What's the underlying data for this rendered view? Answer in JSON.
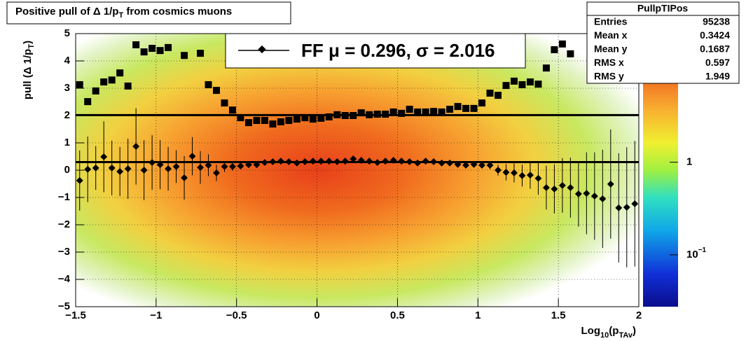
{
  "chart_data": {
    "type": "scatter",
    "title": [
      "Positive pull of Δ 1/p",
      "T",
      " from cosmics muons"
    ],
    "xlabel": [
      "Log",
      "10",
      "(p",
      "TAv",
      ")"
    ],
    "ylabel": [
      "pull (Δ 1/p",
      "T",
      ")"
    ],
    "x": [
      -1.475,
      -1.425,
      -1.375,
      -1.325,
      -1.275,
      -1.225,
      -1.175,
      -1.125,
      -1.075,
      -1.025,
      -0.975,
      -0.925,
      -0.875,
      -0.825,
      -0.775,
      -0.725,
      -0.675,
      -0.625,
      -0.575,
      -0.525,
      -0.475,
      -0.425,
      -0.375,
      -0.325,
      -0.275,
      -0.225,
      -0.175,
      -0.125,
      -0.075,
      -0.025,
      0.025,
      0.075,
      0.125,
      0.175,
      0.225,
      0.275,
      0.325,
      0.375,
      0.425,
      0.475,
      0.525,
      0.575,
      0.625,
      0.675,
      0.725,
      0.775,
      0.825,
      0.875,
      0.925,
      0.975,
      1.025,
      1.075,
      1.125,
      1.175,
      1.225,
      1.275,
      1.325,
      1.375,
      1.425,
      1.475,
      1.525,
      1.575,
      1.625,
      1.675,
      1.725,
      1.775,
      1.825,
      1.875,
      1.925,
      1.975
    ],
    "xlim": [
      -1.5,
      2
    ],
    "ylim": [
      -5,
      5
    ],
    "xticks": [
      {
        "value": -1.5,
        "label": "−1.5"
      },
      {
        "value": -1,
        "label": "−1"
      },
      {
        "value": -0.5,
        "label": "−0.5"
      },
      0,
      0.5,
      1,
      1.5,
      2
    ],
    "yticks": [
      {
        "value": -5,
        "label": "−5"
      },
      {
        "value": -4,
        "label": "−4"
      },
      {
        "value": -3,
        "label": "−3"
      },
      {
        "value": -2,
        "label": "−2"
      },
      {
        "value": -1,
        "label": "−1"
      },
      0,
      1,
      2,
      3,
      4,
      5
    ],
    "grid": true,
    "series": [
      {
        "color": "#000000",
        "marker": "square",
        "values": [
          3.13,
          2.51,
          2.9,
          3.23,
          3.3,
          3.56,
          3.08,
          4.59,
          4.33,
          4.46,
          4.38,
          4.49,
          null,
          4.2,
          null,
          4.28,
          3.13,
          2.92,
          2.46,
          2.2,
          1.92,
          1.74,
          1.82,
          1.82,
          1.69,
          1.77,
          1.82,
          1.87,
          1.92,
          1.87,
          1.9,
          1.95,
          2.03,
          2.0,
          2.0,
          2.1,
          2.03,
          2.05,
          2.05,
          2.13,
          2.08,
          2.23,
          2.13,
          2.13,
          2.15,
          2.13,
          2.23,
          2.33,
          2.26,
          2.26,
          2.46,
          2.82,
          2.74,
          3.1,
          3.26,
          3.13,
          3.23,
          3.15,
          3.74,
          4.41,
          4.62,
          4.26,
          null,
          null,
          null,
          null,
          null,
          null,
          null,
          null
        ]
      },
      {
        "name": "FF μ =  0.296, σ =   2.016",
        "color": "#000000",
        "marker": "diamond",
        "values": [
          -0.38,
          0.03,
          0.08,
          0.49,
          0.08,
          -0.05,
          0.05,
          0.87,
          0.0,
          0.28,
          0.2,
          0.05,
          0.13,
          -0.28,
          0.51,
          0.1,
          0.18,
          -0.1,
          0.13,
          0.13,
          0.15,
          0.2,
          0.2,
          0.28,
          0.31,
          0.33,
          0.31,
          0.26,
          0.31,
          0.33,
          0.33,
          0.33,
          0.31,
          0.33,
          0.41,
          0.36,
          0.33,
          0.28,
          0.33,
          0.36,
          0.33,
          0.31,
          0.26,
          0.33,
          0.31,
          0.26,
          0.26,
          0.21,
          0.18,
          0.21,
          0.18,
          0.18,
          0.0,
          -0.08,
          -0.1,
          -0.2,
          -0.18,
          -0.3,
          -0.64,
          -0.69,
          -0.56,
          -0.64,
          -0.87,
          -0.85,
          -0.95,
          -1.05,
          -0.51,
          -1.38,
          -1.36,
          -1.23
        ],
        "errors": [
          1.1,
          1.2,
          0.8,
          1.3,
          1.0,
          0.9,
          1.1,
          1.4,
          1.1,
          1.0,
          0.9,
          0.8,
          0.6,
          0.8,
          0.7,
          0.6,
          0.4,
          0.3,
          0.2,
          0.15,
          0.08,
          0.08,
          0.08,
          0.08,
          0.08,
          0.08,
          0.08,
          0.08,
          0.08,
          0.08,
          0.08,
          0.08,
          0.08,
          0.08,
          0.08,
          0.08,
          0.08,
          0.08,
          0.08,
          0.08,
          0.08,
          0.08,
          0.08,
          0.08,
          0.08,
          0.08,
          0.08,
          0.08,
          0.08,
          0.08,
          0.08,
          0.15,
          0.2,
          0.3,
          0.35,
          0.4,
          0.5,
          0.6,
          0.8,
          0.9,
          1.0,
          1.1,
          1.2,
          1.5,
          1.6,
          1.8,
          2.0,
          2.0,
          2.2,
          2.3
        ]
      }
    ],
    "hlines": [
      0.296,
      2.016
    ],
    "zscale": "log",
    "zlim": [
      0.0275,
      24.5
    ],
    "zticks": [
      {
        "value": 1,
        "label": "1"
      },
      {
        "value": 0.1,
        "label": "10",
        "exponent": "−1"
      }
    ],
    "stats": {
      "title": "PullpTIPos",
      "rows": [
        [
          "Entries",
          "95238"
        ],
        [
          "Mean x",
          "0.3424"
        ],
        [
          "Mean y",
          "0.1687"
        ],
        [
          "RMS x",
          "0.597"
        ],
        [
          "RMS y",
          "1.949"
        ]
      ]
    }
  }
}
